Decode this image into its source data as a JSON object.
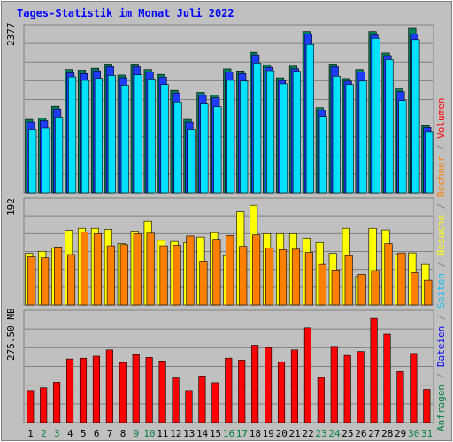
{
  "title": "Tages-Statistik im Monat Juli 2022",
  "axis_max": {
    "top": "2377",
    "middle": "192",
    "bottom": "275.50 MB"
  },
  "right_legend": [
    {
      "text": "Anfragen",
      "color": "#008040"
    },
    {
      "text": " / ",
      "color": "#808080"
    },
    {
      "text": "Dateien",
      "color": "#0000ff"
    },
    {
      "text": " / ",
      "color": "#808080"
    },
    {
      "text": "Seiten",
      "color": "#00c0ff"
    },
    {
      "text": " / ",
      "color": "#808080"
    },
    {
      "text": "Besuche",
      "color": "#ffff00"
    },
    {
      "text": " / ",
      "color": "#808080"
    },
    {
      "text": "Rechner",
      "color": "#ff8000"
    },
    {
      "text": " / ",
      "color": "#808080"
    },
    {
      "text": "Volumen",
      "color": "#ff0000"
    }
  ],
  "colors": {
    "background": "#c0c0c0",
    "plot_bg": "#c0c0c0",
    "grid": "#808080",
    "title": "#0000ff",
    "day_weekday": "#000000",
    "day_weekend": "#008040",
    "hits": "#00805a",
    "files": "#1e3cff",
    "pages": "#00e0ff",
    "visits": "#ffff00",
    "sites": "#ff8000",
    "volume": "#ff0000"
  },
  "chart_data": [
    {
      "type": "bar",
      "title": "Tages-Statistik im Monat Juli 2022",
      "categories": [
        "1",
        "2",
        "3",
        "4",
        "5",
        "6",
        "7",
        "8",
        "9",
        "10",
        "11",
        "12",
        "13",
        "14",
        "15",
        "16",
        "17",
        "18",
        "19",
        "20",
        "21",
        "22",
        "23",
        "24",
        "25",
        "26",
        "27",
        "28",
        "29",
        "30",
        "31"
      ],
      "weekend_days": [
        "2",
        "3",
        "9",
        "10",
        "16",
        "17",
        "23",
        "24",
        "30",
        "31"
      ],
      "ylim": [
        0,
        2377
      ],
      "ymax_label": "2377",
      "series": [
        {
          "name": "Anfragen",
          "values": [
            1060,
            1080,
            1250,
            1780,
            1770,
            1800,
            1860,
            1700,
            1860,
            1780,
            1710,
            1480,
            1060,
            1450,
            1410,
            1790,
            1760,
            2030,
            1850,
            1660,
            1830,
            2330,
            1230,
            1860,
            1650,
            1780,
            2330,
            2020,
            1500,
            2377,
            980
          ]
        },
        {
          "name": "Dateien",
          "values": [
            1060,
            1080,
            1250,
            1770,
            1760,
            1800,
            1860,
            1700,
            1860,
            1780,
            1710,
            1480,
            1060,
            1450,
            1410,
            1780,
            1760,
            2030,
            1850,
            1660,
            1830,
            2330,
            1230,
            1860,
            1650,
            1780,
            2320,
            2020,
            1500,
            2330,
            980
          ]
        },
        {
          "name": "Seiten",
          "values": [
            990,
            1010,
            1170,
            1750,
            1700,
            1730,
            1770,
            1630,
            1780,
            1720,
            1640,
            1390,
            990,
            1360,
            1320,
            1700,
            1690,
            1950,
            1840,
            1650,
            1830,
            2220,
            1180,
            1760,
            1640,
            1690,
            2310,
            2000,
            1410,
            2290,
            960
          ]
        }
      ]
    },
    {
      "type": "bar",
      "categories": [
        "1",
        "2",
        "3",
        "4",
        "5",
        "6",
        "7",
        "8",
        "9",
        "10",
        "11",
        "12",
        "13",
        "14",
        "15",
        "16",
        "17",
        "18",
        "19",
        "20",
        "21",
        "22",
        "23",
        "24",
        "25",
        "26",
        "27",
        "28",
        "29",
        "30",
        "31"
      ],
      "ylim": [
        0,
        192
      ],
      "ymax_label": "192",
      "series": [
        {
          "name": "Besuche",
          "values": [
            94,
            98,
            104,
            136,
            140,
            140,
            138,
            112,
            135,
            153,
            118,
            116,
            114,
            124,
            132,
            90,
            170,
            182,
            130,
            130,
            130,
            122,
            114,
            94,
            140,
            52,
            140,
            137,
            92,
            95,
            74
          ]
        },
        {
          "name": "Rechner",
          "values": [
            88,
            86,
            106,
            92,
            133,
            130,
            108,
            110,
            130,
            131,
            108,
            109,
            126,
            80,
            120,
            127,
            107,
            128,
            104,
            101,
            102,
            96,
            74,
            64,
            90,
            56,
            63,
            112,
            95,
            59,
            45
          ]
        }
      ]
    },
    {
      "type": "bar",
      "categories": [
        "1",
        "2",
        "3",
        "4",
        "5",
        "6",
        "7",
        "8",
        "9",
        "10",
        "11",
        "12",
        "13",
        "14",
        "15",
        "16",
        "17",
        "18",
        "19",
        "20",
        "21",
        "22",
        "23",
        "24",
        "25",
        "26",
        "27",
        "28",
        "29",
        "30",
        "31"
      ],
      "ylim": [
        0,
        275.5
      ],
      "ymax_label": "275.50 MB",
      "ylabel_unit": "MB",
      "series": [
        {
          "name": "Volumen",
          "values": [
            81,
            88,
            102,
            161,
            163,
            168,
            184,
            152,
            172,
            165,
            156,
            113,
            81,
            118,
            101,
            163,
            158,
            196,
            190,
            154,
            184,
            240,
            114,
            193,
            170,
            180,
            264,
            224,
            129,
            175,
            84
          ]
        }
      ]
    }
  ]
}
